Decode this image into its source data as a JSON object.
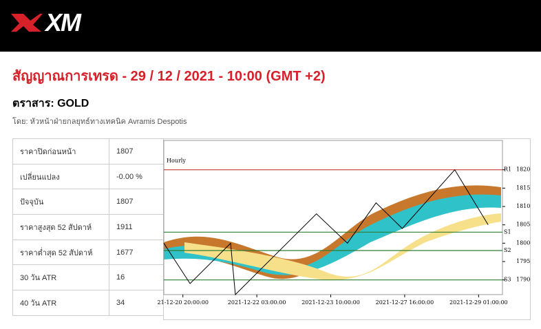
{
  "header": {
    "logo": "XM"
  },
  "title": "สัญญาณการเทรด - 29 / 12 / 2021 - 10:00 (GMT +2)",
  "instrument": "ตราสาร: GOLD",
  "author": "โดย: หัวหน้าฝ่ายกลยุทธ์ทางเทคนิค Avramis Despotis",
  "table": {
    "rows": [
      [
        "ราคาปิดก่อนหน้า",
        "1807"
      ],
      [
        "เปลี่ยนแปลง",
        "-0.00 %"
      ],
      [
        "ปัจจุบัน",
        "1807"
      ],
      [
        "ราคาสูงสุด 52 สัปดาห์",
        "1911"
      ],
      [
        "ราคาต่ำสุด 52 สัปดาห์",
        "1677"
      ],
      [
        "30 วัน ATR",
        "16"
      ],
      [
        "40 วัน ATR",
        "34"
      ]
    ]
  },
  "chart_data": {
    "type": "line",
    "title": "Hourly",
    "x": [
      -8,
      3,
      20,
      22,
      56,
      69,
      81,
      92,
      114,
      128
    ],
    "series": [
      {
        "color": "#000000",
        "values": [
          1800,
          1789,
          1800,
          1786,
          1808,
          1800,
          1811,
          1804,
          1820,
          1805
        ]
      }
    ],
    "xlim": [
      -8,
      134
    ],
    "xticks": [
      {
        "value": 0,
        "label": "21-12-20 20:00:00"
      },
      {
        "value": 31,
        "label": "2021-12-22 03:00:00"
      },
      {
        "value": 62,
        "label": "2021-12-23 10:00:00"
      },
      {
        "value": 93,
        "label": "2021-12-27 16:00:00"
      },
      {
        "value": 124,
        "label": "2021-12-29 01:00:00"
      }
    ],
    "ylim": [
      1786,
      1828
    ],
    "yticks": [
      1790,
      1795,
      1800,
      1805,
      1810,
      1815,
      1820
    ],
    "levels": [
      {
        "name": "R1",
        "value": 1820,
        "color": "#c0392b"
      },
      {
        "name": "S1",
        "value": 1803,
        "color": "#2e7d32"
      },
      {
        "name": "S2",
        "value": 1798,
        "color": "#2e7d32"
      },
      {
        "name": "S3",
        "value": 1790,
        "color": "#2e7d32"
      }
    ]
  }
}
